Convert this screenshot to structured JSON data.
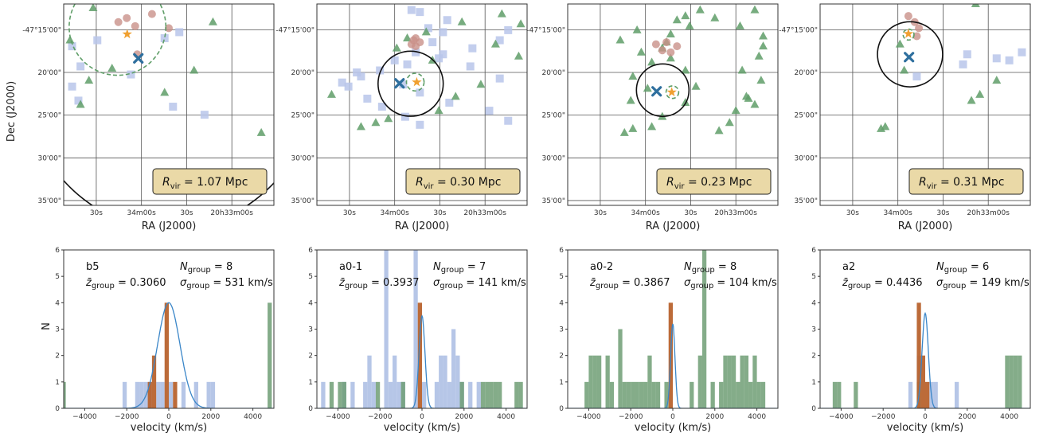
{
  "colors": {
    "square": "#b8c6ea",
    "triangle": "#5f9e68",
    "circle": "#c9918a",
    "star": "#f0a030",
    "cross": "#2e6f9e",
    "hist_blue": "#b2c3e6",
    "hist_green": "#6e9e74",
    "hist_orange": "#b8632e",
    "gauss": "#3a86c8",
    "box_fill": "#ead9a7",
    "box_edge": "#222222"
  },
  "labels": {
    "ra": "RA (J2000)",
    "dec": "Dec (J2000)",
    "velocity": "velocity (km/s)",
    "n": "N"
  },
  "sky_ticks": {
    "x": [
      "30s",
      "34m00s",
      "30s",
      "20h33m00s"
    ],
    "y": [
      "-47°15'00\"",
      "20'00\"",
      "25'00\"",
      "30'00\"",
      "35'00\""
    ]
  },
  "chart_data": [
    {
      "type": "scatter",
      "panel": "sky-1",
      "rvir_text": "1.07 Mpc",
      "big_circle": {
        "cx": 20.5,
        "cy": 50.5,
        "r": 67.5
      },
      "dashed_circle": {
        "cx": 5.7,
        "cy": 25.6,
        "r": 23
      },
      "cross": [
        13.5,
        35.5
      ],
      "star": [
        7.5,
        30.2
      ],
      "squares": [
        [
          31,
          8
        ],
        [
          41,
          4
        ],
        [
          18,
          16
        ],
        [
          21,
          4
        ],
        [
          48,
          7
        ],
        [
          55,
          67
        ],
        [
          51,
          52
        ],
        [
          35,
          32
        ],
        [
          17,
          48
        ],
        [
          14,
          55
        ]
      ],
      "triangles": [
        [
          18,
          3
        ],
        [
          2,
          14
        ],
        [
          9,
          71
        ],
        [
          32,
          23
        ],
        [
          38,
          12
        ],
        [
          33,
          62
        ],
        [
          44,
          48
        ],
        [
          64,
          94
        ],
        [
          50,
          8
        ]
      ],
      "circles": [
        [
          5,
          42
        ],
        [
          7,
          30
        ],
        [
          25,
          35
        ],
        [
          11,
          34
        ],
        [
          9,
          26
        ],
        [
          12,
          50
        ]
      ]
    },
    {
      "type": "scatter",
      "panel": "sky-2",
      "rvir_text": "0.30 Mpc",
      "big_circle": {
        "cx": 19.8,
        "cy": 44.6,
        "r": 15.5
      },
      "dashed_circle": {
        "cx": 19.4,
        "cy": 46.8,
        "r": 4.2
      },
      "cross": [
        19.7,
        39.3
      ],
      "star": [
        19.4,
        47.5
      ],
      "squares": [
        [
          4,
          49
        ],
        [
          3,
          45
        ],
        [
          12,
          53
        ],
        [
          19,
          55
        ],
        [
          25,
          60
        ],
        [
          31,
          73
        ],
        [
          37,
          87
        ],
        [
          40,
          41
        ],
        [
          44,
          49
        ],
        [
          49,
          63
        ],
        [
          53,
          82
        ],
        [
          58,
          91
        ],
        [
          13,
          91
        ],
        [
          18,
          87
        ],
        [
          22,
          74
        ],
        [
          27,
          58
        ],
        [
          30,
          43
        ],
        [
          33,
          30
        ],
        [
          36,
          21
        ],
        [
          41,
          15
        ],
        [
          47,
          24
        ],
        [
          51,
          31
        ],
        [
          56,
          42
        ],
        [
          60,
          49
        ],
        [
          8,
          62
        ],
        [
          14,
          60
        ],
        [
          24,
          47
        ],
        [
          28,
          37
        ],
        [
          34,
          19
        ],
        [
          39,
          12
        ]
      ],
      "triangles": [
        [
          10,
          97
        ],
        [
          5,
          88
        ],
        [
          9,
          69
        ],
        [
          20,
          85
        ],
        [
          14,
          52
        ],
        [
          17,
          43
        ],
        [
          22,
          38
        ],
        [
          28,
          55
        ],
        [
          26,
          96
        ],
        [
          40,
          78
        ],
        [
          46,
          66
        ],
        [
          53,
          58
        ],
        [
          57,
          34
        ],
        [
          59,
          28
        ],
        [
          61,
          21
        ],
        [
          45,
          7
        ]
      ],
      "circles": [
        [
          17,
          47
        ],
        [
          21,
          47
        ],
        [
          18,
          46
        ],
        [
          19,
          49
        ],
        [
          20,
          45
        ]
      ]
    },
    {
      "type": "scatter",
      "panel": "sky-3",
      "rvir_text": "0.23 Mpc",
      "big_circle": {
        "cx": 21.4,
        "cy": 45.2,
        "r": 12.5
      },
      "dashed_circle": {
        "cx": 21.9,
        "cy": 49.8,
        "r": 3.0
      },
      "cross": [
        21.7,
        42.3
      ],
      "star": [
        21.9,
        49.5
      ],
      "squares": [],
      "triangles": [
        [
          3,
          89
        ],
        [
          7,
          70
        ],
        [
          11,
          82
        ],
        [
          16,
          93
        ],
        [
          21,
          93
        ],
        [
          26,
          91
        ],
        [
          33,
          83
        ],
        [
          38,
          92
        ],
        [
          46,
          85
        ],
        [
          53,
          80
        ],
        [
          59,
          77
        ],
        [
          63,
          72
        ],
        [
          3,
          63
        ],
        [
          6,
          56
        ],
        [
          8,
          52
        ],
        [
          11,
          58
        ],
        [
          15,
          49
        ],
        [
          19,
          47
        ],
        [
          22,
          45
        ],
        [
          27,
          49
        ],
        [
          33,
          56
        ],
        [
          41,
          61
        ],
        [
          49,
          56
        ],
        [
          56,
          45
        ],
        [
          61,
          40
        ],
        [
          47,
          86
        ],
        [
          50,
          89
        ],
        [
          62,
          31
        ],
        [
          64,
          27
        ],
        [
          13,
          33
        ],
        [
          18,
          25
        ],
        [
          29,
          40
        ],
        [
          36,
          31
        ],
        [
          42,
          38
        ],
        [
          48,
          30
        ],
        [
          24,
          35
        ]
      ],
      "circles": [
        [
          21,
          52
        ],
        [
          19,
          47
        ],
        [
          24,
          49
        ],
        [
          20,
          42
        ],
        [
          23,
          45
        ]
      ]
    },
    {
      "type": "scatter",
      "panel": "sky-4",
      "rvir_text": "0.31 Mpc",
      "big_circle": {
        "cx": 12.5,
        "cy": 42.8,
        "r": 15.5
      },
      "dashed_circle": {
        "cx": 7.6,
        "cy": 42.1,
        "r": 2.6
      },
      "cross": [
        13.2,
        42.3
      ],
      "star": [
        7.4,
        42.0
      ],
      "squares": [
        [
          25,
          70
        ],
        [
          27,
          84
        ],
        [
          30,
          68
        ],
        [
          36,
          46
        ],
        [
          28,
          90
        ],
        [
          24,
          96
        ]
      ],
      "triangles": [
        [
          0,
          74
        ],
        [
          45,
          76
        ],
        [
          48,
          72
        ],
        [
          38,
          84
        ],
        [
          33,
          40
        ],
        [
          20,
          38
        ],
        [
          61,
          31
        ],
        [
          62,
          29
        ]
      ],
      "circles": [
        [
          9,
          45
        ],
        [
          12,
          47
        ],
        [
          16,
          46
        ],
        [
          6,
          42
        ]
      ]
    },
    {
      "type": "bar",
      "panel": "hist-1",
      "name": "b5",
      "n_group": "8",
      "z_group": "0.3060",
      "sigma": "531",
      "xlim": [
        -5000,
        5000
      ],
      "ylim": [
        0,
        6
      ],
      "xticks": [
        -4000,
        -2000,
        0,
        2000,
        4000
      ],
      "yticks": [
        0,
        1,
        2,
        3,
        4,
        5,
        6
      ],
      "bin_width": 200,
      "blue": [
        [
          -2100,
          1
        ],
        [
          -1500,
          1
        ],
        [
          -1300,
          1
        ],
        [
          -1100,
          1
        ],
        [
          -900,
          1
        ],
        [
          -500,
          1
        ],
        [
          -300,
          1
        ],
        [
          100,
          1
        ],
        [
          700,
          1
        ],
        [
          1300,
          1
        ],
        [
          1900,
          1
        ],
        [
          2100,
          1
        ]
      ],
      "green": [
        [
          -5000,
          1
        ],
        [
          4800,
          4
        ]
      ],
      "orange": [
        [
          -900,
          1
        ],
        [
          -700,
          2
        ],
        [
          -100,
          4
        ],
        [
          300,
          1
        ]
      ],
      "gauss": {
        "mu": 0,
        "sigma": 531,
        "peak": 4
      }
    },
    {
      "type": "bar",
      "panel": "hist-2",
      "name": "a0-1",
      "n_group": "7",
      "z_group": "0.3937",
      "sigma": "141",
      "xlim": [
        -5000,
        5000
      ],
      "ylim": [
        0,
        6
      ],
      "xticks": [
        -4000,
        -2000,
        0,
        2000,
        4000
      ],
      "yticks": [
        0,
        1,
        2,
        3,
        4,
        5,
        6
      ],
      "bin_width": 200,
      "blue": [
        [
          -4700,
          1
        ],
        [
          -3700,
          1
        ],
        [
          -3300,
          1
        ],
        [
          -2700,
          1
        ],
        [
          -2500,
          2
        ],
        [
          -2300,
          1
        ],
        [
          -1700,
          6
        ],
        [
          -1500,
          1
        ],
        [
          -1300,
          2
        ],
        [
          -1100,
          1
        ],
        [
          -900,
          1
        ],
        [
          -300,
          6
        ],
        [
          100,
          1
        ],
        [
          700,
          1
        ],
        [
          900,
          2
        ],
        [
          1100,
          2
        ],
        [
          1300,
          1
        ],
        [
          1500,
          3
        ],
        [
          1700,
          2
        ],
        [
          1900,
          1
        ],
        [
          2300,
          1
        ],
        [
          2700,
          1
        ]
      ],
      "green": [
        [
          -4300,
          1
        ],
        [
          -3900,
          1
        ],
        [
          -3700,
          1
        ],
        [
          -2100,
          1
        ],
        [
          -900,
          1
        ],
        [
          1900,
          1
        ],
        [
          2900,
          1
        ],
        [
          3100,
          1
        ],
        [
          3300,
          1
        ],
        [
          3500,
          1
        ],
        [
          3700,
          1
        ],
        [
          4500,
          1
        ],
        [
          4700,
          1
        ]
      ],
      "orange": [
        [
          -100,
          4
        ]
      ],
      "gauss": {
        "mu": 0,
        "sigma": 141,
        "peak": 3.5
      }
    },
    {
      "type": "bar",
      "panel": "hist-3",
      "name": "a0-2",
      "n_group": "8",
      "z_group": "0.3867",
      "sigma": "104",
      "xlim": [
        -5000,
        5000
      ],
      "ylim": [
        0,
        6
      ],
      "xticks": [
        -4000,
        -2000,
        0,
        2000,
        4000
      ],
      "yticks": [
        0,
        1,
        2,
        3,
        4,
        5,
        6
      ],
      "bin_width": 200,
      "blue": [],
      "green": [
        [
          -4100,
          1
        ],
        [
          -3900,
          2
        ],
        [
          -3700,
          2
        ],
        [
          -3500,
          2
        ],
        [
          -3100,
          2
        ],
        [
          -2900,
          1
        ],
        [
          -2500,
          3
        ],
        [
          -2300,
          1
        ],
        [
          -2100,
          1
        ],
        [
          -1900,
          1
        ],
        [
          -1700,
          1
        ],
        [
          -1500,
          1
        ],
        [
          -1300,
          1
        ],
        [
          -1100,
          2
        ],
        [
          -900,
          1
        ],
        [
          -700,
          1
        ],
        [
          -300,
          1
        ],
        [
          900,
          1
        ],
        [
          1300,
          2
        ],
        [
          1500,
          7
        ],
        [
          1900,
          1
        ],
        [
          2300,
          1
        ],
        [
          2500,
          2
        ],
        [
          2700,
          2
        ],
        [
          2900,
          2
        ],
        [
          3100,
          1
        ],
        [
          3300,
          2
        ],
        [
          3500,
          2
        ],
        [
          3700,
          1
        ],
        [
          3900,
          2
        ],
        [
          4100,
          1
        ],
        [
          4300,
          1
        ]
      ],
      "orange": [
        [
          -100,
          4
        ]
      ],
      "gauss": {
        "mu": 0,
        "sigma": 104,
        "peak": 3.2
      }
    },
    {
      "type": "bar",
      "panel": "hist-4",
      "name": "a2",
      "n_group": "6",
      "z_group": "0.4436",
      "sigma": "149",
      "xlim": [
        -5000,
        5000
      ],
      "ylim": [
        0,
        6
      ],
      "xticks": [
        -4000,
        -2000,
        0,
        2000,
        4000
      ],
      "yticks": [
        0,
        1,
        2,
        3,
        4,
        5,
        6
      ],
      "bin_width": 200,
      "blue": [
        [
          -700,
          1
        ],
        [
          -300,
          2
        ],
        [
          300,
          1
        ],
        [
          500,
          1
        ],
        [
          1500,
          1
        ]
      ],
      "green": [
        [
          -4300,
          1
        ],
        [
          -4100,
          1
        ],
        [
          -3300,
          1
        ],
        [
          3900,
          2
        ],
        [
          4100,
          2
        ],
        [
          4300,
          2
        ],
        [
          4500,
          2
        ],
        [
          -300,
          1
        ]
      ],
      "orange": [
        [
          -300,
          4
        ],
        [
          -100,
          2
        ],
        [
          100,
          1
        ]
      ],
      "gauss": {
        "mu": 0,
        "sigma": 149,
        "peak": 3.6
      }
    }
  ]
}
